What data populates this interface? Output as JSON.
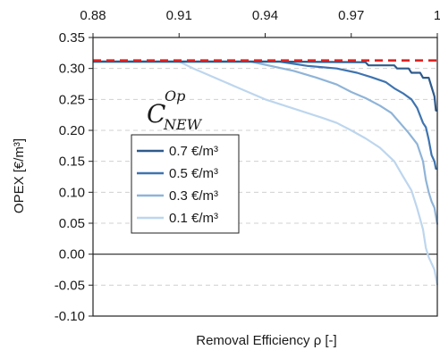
{
  "chart_data": {
    "type": "line",
    "xlabel": "Removal Efficiency ρ [-]",
    "ylabel": "OPEX [€/m³]",
    "xlim": [
      0.88,
      1.0
    ],
    "ylim": [
      -0.1,
      0.35
    ],
    "x_ticks": [
      "0.88",
      "0.91",
      "0.94",
      "0.97",
      "1"
    ],
    "y_ticks": [
      "0.35",
      "0.30",
      "0.25",
      "0.20",
      "0.15",
      "0.10",
      "0.05",
      "0.00",
      "-0.05",
      "-0.10"
    ],
    "x_axis_position": "top",
    "grid": "horizontal dashed",
    "legend": {
      "position": "center-left",
      "title_main": "C",
      "title_sup": "Op",
      "title_sub": "NEW"
    },
    "reference_line": {
      "y": 0.313,
      "color": "#dd2222",
      "style": "dashed"
    },
    "series": [
      {
        "name": "0.7 €/m³",
        "color": "#2e5a8c",
        "points": [
          [
            0.88,
            0.311
          ],
          [
            0.945,
            0.311
          ],
          [
            0.975,
            0.31
          ],
          [
            0.976,
            0.305
          ],
          [
            0.985,
            0.305
          ],
          [
            0.986,
            0.3
          ],
          [
            0.99,
            0.3
          ],
          [
            0.991,
            0.293
          ],
          [
            0.994,
            0.293
          ],
          [
            0.995,
            0.285
          ],
          [
            0.997,
            0.285
          ],
          [
            0.998,
            0.27
          ],
          [
            0.999,
            0.255
          ],
          [
            0.9995,
            0.232
          ],
          [
            1.0,
            0.232
          ]
        ]
      },
      {
        "name": "0.5 €/m³",
        "color": "#3f74b0",
        "points": [
          [
            0.88,
            0.311
          ],
          [
            0.945,
            0.311
          ],
          [
            0.955,
            0.304
          ],
          [
            0.965,
            0.3
          ],
          [
            0.972,
            0.293
          ],
          [
            0.977,
            0.286
          ],
          [
            0.982,
            0.278
          ],
          [
            0.985,
            0.268
          ],
          [
            0.988,
            0.26
          ],
          [
            0.991,
            0.25
          ],
          [
            0.993,
            0.236
          ],
          [
            0.995,
            0.212
          ],
          [
            0.996,
            0.205
          ],
          [
            0.997,
            0.185
          ],
          [
            0.998,
            0.16
          ],
          [
            0.999,
            0.15
          ],
          [
            0.9995,
            0.138
          ],
          [
            1.0,
            0.138
          ]
        ]
      },
      {
        "name": "0.3 €/m³",
        "color": "#8fb4d8",
        "points": [
          [
            0.88,
            0.311
          ],
          [
            0.935,
            0.311
          ],
          [
            0.94,
            0.306
          ],
          [
            0.95,
            0.296
          ],
          [
            0.958,
            0.285
          ],
          [
            0.965,
            0.274
          ],
          [
            0.97,
            0.262
          ],
          [
            0.975,
            0.252
          ],
          [
            0.98,
            0.24
          ],
          [
            0.984,
            0.228
          ],
          [
            0.987,
            0.212
          ],
          [
            0.99,
            0.196
          ],
          [
            0.993,
            0.178
          ],
          [
            0.995,
            0.15
          ],
          [
            0.996,
            0.12
          ],
          [
            0.997,
            0.1
          ],
          [
            0.998,
            0.085
          ],
          [
            0.999,
            0.075
          ],
          [
            1.0,
            0.048
          ]
        ]
      },
      {
        "name": "0.1 €/m³",
        "color": "#bdd6ee",
        "points": [
          [
            0.88,
            0.311
          ],
          [
            0.91,
            0.311
          ],
          [
            0.915,
            0.3
          ],
          [
            0.92,
            0.29
          ],
          [
            0.93,
            0.27
          ],
          [
            0.94,
            0.25
          ],
          [
            0.95,
            0.235
          ],
          [
            0.96,
            0.22
          ],
          [
            0.965,
            0.212
          ],
          [
            0.97,
            0.2
          ],
          [
            0.975,
            0.187
          ],
          [
            0.98,
            0.172
          ],
          [
            0.985,
            0.15
          ],
          [
            0.988,
            0.126
          ],
          [
            0.991,
            0.103
          ],
          [
            0.993,
            0.074
          ],
          [
            0.995,
            0.04
          ],
          [
            0.996,
            0.01
          ],
          [
            0.997,
            -0.005
          ],
          [
            0.998,
            -0.015
          ],
          [
            0.999,
            -0.025
          ],
          [
            1.0,
            -0.05
          ]
        ]
      }
    ]
  }
}
